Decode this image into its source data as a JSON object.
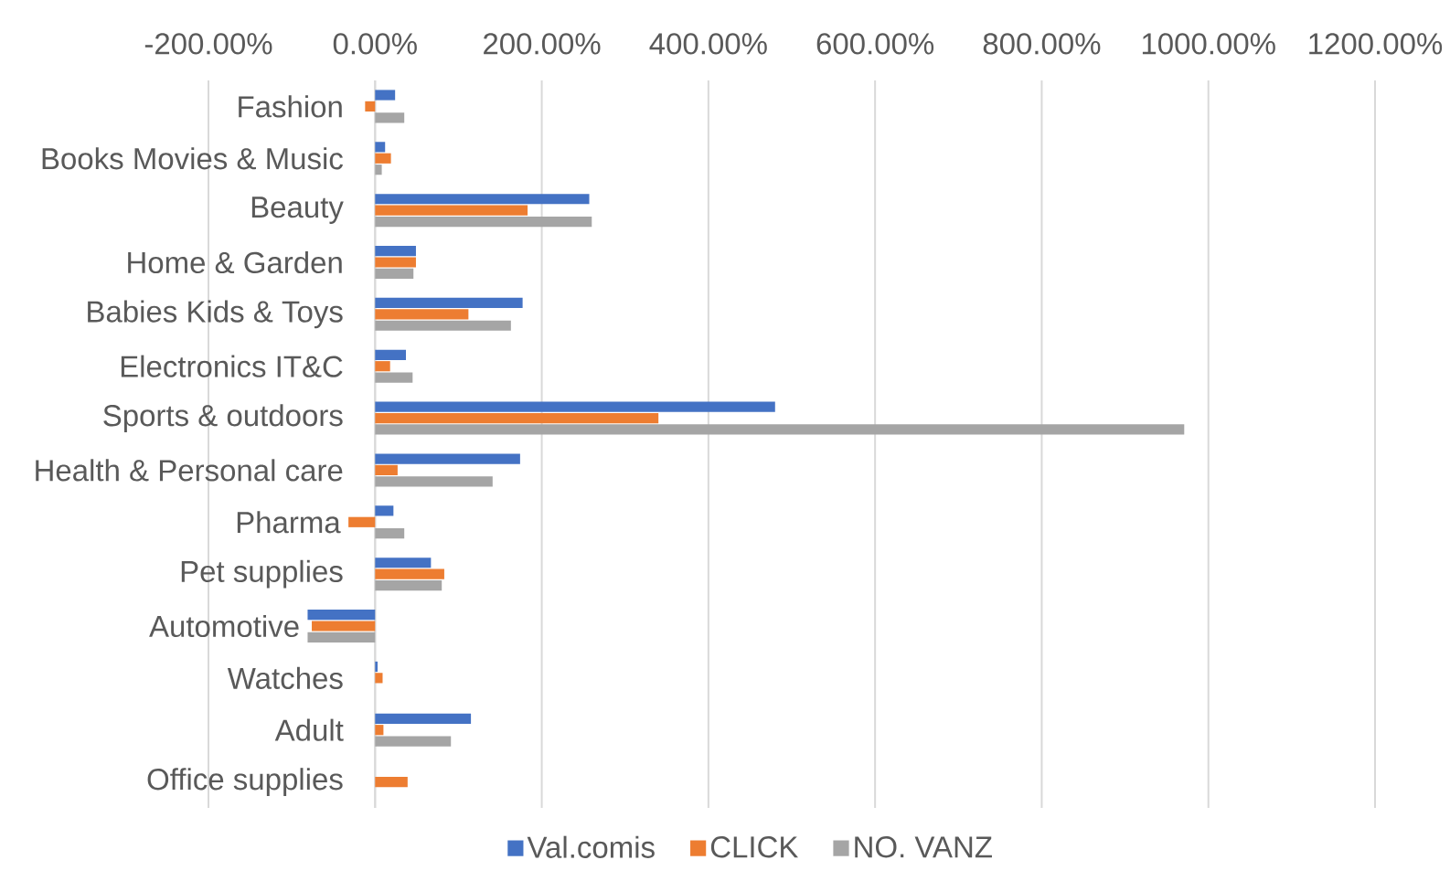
{
  "chart_data": {
    "type": "bar",
    "orientation": "horizontal",
    "categories": [
      "Fashion",
      "Books Movies & Music",
      "Beauty",
      "Home & Garden",
      "Babies Kids & Toys",
      "Electronics IT&C",
      "Sports & outdoors",
      "Health & Personal care",
      "Pharma",
      "Pet supplies",
      "Automotive",
      "Watches",
      "Adult",
      "Office supplies"
    ],
    "series": [
      {
        "name": "Val.comis",
        "color": "#4472c4",
        "values": [
          24,
          12,
          257,
          49,
          177,
          37,
          480,
          174,
          22,
          67,
          -81,
          3,
          115,
          null
        ]
      },
      {
        "name": "CLICK",
        "color": "#ed7d31",
        "values": [
          -12,
          19,
          183,
          49,
          112,
          18,
          340,
          27,
          -32,
          83,
          -76,
          9,
          10,
          39
        ]
      },
      {
        "name": "NO. VANZ",
        "color": "#a5a5a5",
        "values": [
          35,
          8,
          260,
          46,
          163,
          45,
          971,
          141,
          35,
          80,
          -81,
          null,
          91,
          null
        ]
      }
    ],
    "xlim": [
      -200,
      1200
    ],
    "xticks": [
      {
        "value": -200,
        "label": "-200.00%"
      },
      {
        "value": 0,
        "label": "0.00%"
      },
      {
        "value": 200,
        "label": "200.00%"
      },
      {
        "value": 400,
        "label": "400.00%"
      },
      {
        "value": 600,
        "label": "600.00%"
      },
      {
        "value": 800,
        "label": "800.00%"
      },
      {
        "value": 1000,
        "label": "1000.00%"
      },
      {
        "value": 1200,
        "label": "1200.00%"
      }
    ],
    "grid": "x",
    "legend": "bottom"
  }
}
